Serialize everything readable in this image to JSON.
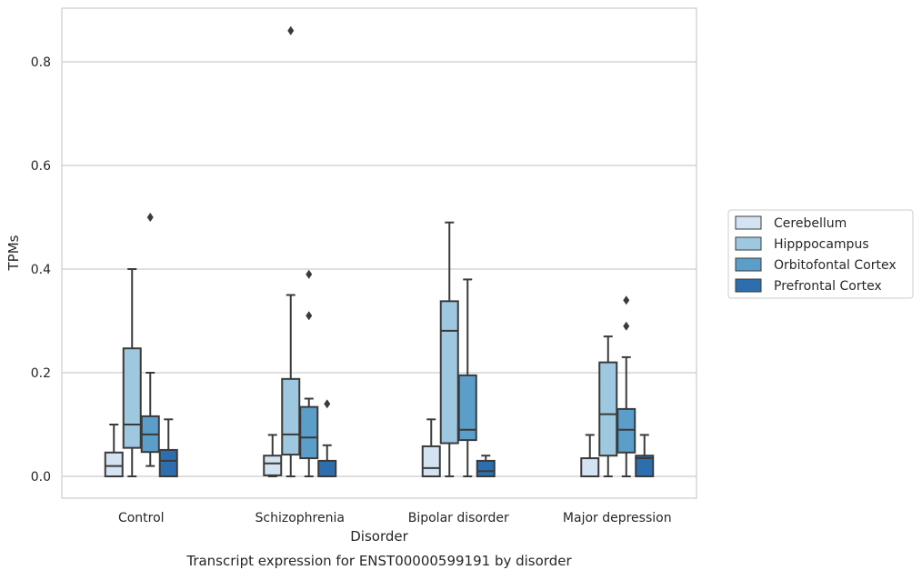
{
  "chart_data": {
    "type": "boxplot",
    "title": "",
    "caption": "Transcript expression for ENST00000599191 by disorder",
    "xlabel": "Disorder",
    "ylabel": "TPMs",
    "ylim": [
      -0.042,
      0.905
    ],
    "yticks": [
      0.0,
      0.2,
      0.4,
      0.6,
      0.8
    ],
    "ytick_labels": [
      "0.0",
      "0.2",
      "0.4",
      "0.6",
      "0.8"
    ],
    "grid": "horizontal",
    "legend_placement": "right-center",
    "categories": [
      "Control",
      "Schizophrenia",
      "Bipolar disorder",
      "Major depression"
    ],
    "series": [
      {
        "name": "Cerebellum",
        "color": "#d4e3f2",
        "boxes": [
          {
            "whisker_low": 0.0,
            "q1": 0.0,
            "median": 0.02,
            "q3": 0.046,
            "whisker_high": 0.1,
            "outliers": []
          },
          {
            "whisker_low": 0.0,
            "q1": 0.002,
            "median": 0.025,
            "q3": 0.04,
            "whisker_high": 0.08,
            "outliers": []
          },
          {
            "whisker_low": 0.0,
            "q1": 0.0,
            "median": 0.016,
            "q3": 0.058,
            "whisker_high": 0.11,
            "outliers": []
          },
          {
            "whisker_low": 0.0,
            "q1": 0.0,
            "median": 0.0,
            "q3": 0.035,
            "whisker_high": 0.08,
            "outliers": []
          }
        ]
      },
      {
        "name": "Hipppocampus",
        "color": "#9dc8df",
        "boxes": [
          {
            "whisker_low": 0.0,
            "q1": 0.055,
            "median": 0.1,
            "q3": 0.247,
            "whisker_high": 0.4,
            "outliers": []
          },
          {
            "whisker_low": 0.0,
            "q1": 0.042,
            "median": 0.081,
            "q3": 0.188,
            "whisker_high": 0.35,
            "outliers": [
              0.86
            ]
          },
          {
            "whisker_low": 0.0,
            "q1": 0.064,
            "median": 0.281,
            "q3": 0.338,
            "whisker_high": 0.49,
            "outliers": []
          },
          {
            "whisker_low": 0.0,
            "q1": 0.04,
            "median": 0.12,
            "q3": 0.22,
            "whisker_high": 0.27,
            "outliers": []
          }
        ]
      },
      {
        "name": "Orbitofontal Cortex",
        "color": "#5a9ec9",
        "boxes": [
          {
            "whisker_low": 0.02,
            "q1": 0.047,
            "median": 0.081,
            "q3": 0.116,
            "whisker_high": 0.2,
            "outliers": [
              0.5
            ]
          },
          {
            "whisker_low": 0.0,
            "q1": 0.035,
            "median": 0.075,
            "q3": 0.134,
            "whisker_high": 0.15,
            "outliers": [
              0.31,
              0.39
            ]
          },
          {
            "whisker_low": 0.0,
            "q1": 0.07,
            "median": 0.09,
            "q3": 0.195,
            "whisker_high": 0.38,
            "outliers": []
          },
          {
            "whisker_low": 0.0,
            "q1": 0.046,
            "median": 0.09,
            "q3": 0.13,
            "whisker_high": 0.23,
            "outliers": [
              0.29,
              0.34
            ]
          }
        ]
      },
      {
        "name": "Prefrontal Cortex",
        "color": "#2d6fae",
        "boxes": [
          {
            "whisker_low": 0.0,
            "q1": 0.0,
            "median": 0.03,
            "q3": 0.051,
            "whisker_high": 0.11,
            "outliers": []
          },
          {
            "whisker_low": 0.0,
            "q1": 0.0,
            "median": 0.0,
            "q3": 0.03,
            "whisker_high": 0.06,
            "outliers": [
              0.14
            ]
          },
          {
            "whisker_low": 0.0,
            "q1": 0.0,
            "median": 0.01,
            "q3": 0.03,
            "whisker_high": 0.04,
            "outliers": []
          },
          {
            "whisker_low": 0.0,
            "q1": 0.0,
            "median": 0.035,
            "q3": 0.04,
            "whisker_high": 0.08,
            "outliers": []
          }
        ]
      }
    ]
  }
}
